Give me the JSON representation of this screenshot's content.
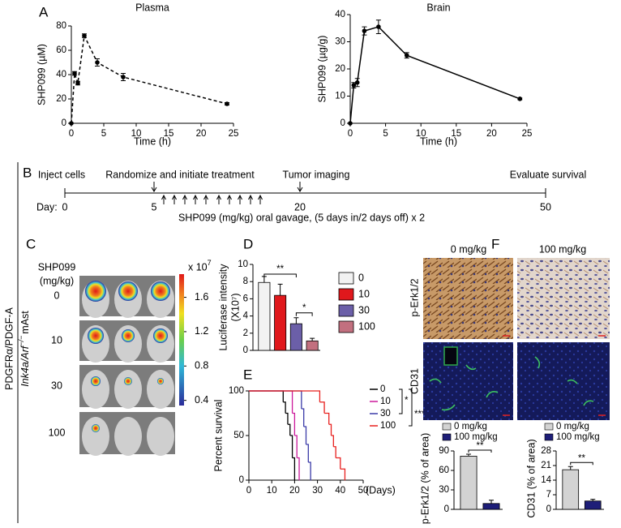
{
  "panel_labels": [
    "A",
    "B",
    "C",
    "D",
    "E",
    "F"
  ],
  "chart_data": [
    {
      "type": "line",
      "title": "Plasma",
      "xlabel": "Time (h)",
      "ylabel": "SHP099 (µM)",
      "x": [
        0,
        0.5,
        1,
        2,
        4,
        8,
        24
      ],
      "series": [
        {
          "color": "#000000",
          "dashed": true,
          "values": [
            0,
            41,
            33,
            72,
            50,
            38,
            16
          ],
          "errors": [
            0,
            1.5,
            1.5,
            1.5,
            3,
            3,
            1
          ]
        }
      ],
      "xlim": [
        0,
        25
      ],
      "xticks": [
        0,
        5,
        10,
        15,
        20,
        25
      ],
      "ylim": [
        0,
        80
      ],
      "yticks": [
        0,
        20,
        40,
        60,
        80
      ]
    },
    {
      "type": "line",
      "title": "Brain",
      "xlabel": "Time (h)",
      "ylabel": "SHP099 (µg/g)",
      "x": [
        0,
        0.5,
        1,
        2,
        4,
        8,
        24
      ],
      "series": [
        {
          "color": "#000000",
          "dashed": false,
          "values": [
            0,
            14,
            15,
            34,
            35.5,
            25,
            9
          ],
          "errors": [
            0,
            1,
            1.5,
            1.5,
            2.5,
            1,
            0.3
          ]
        }
      ],
      "xlim": [
        0,
        25
      ],
      "xticks": [
        0,
        5,
        10,
        15,
        20,
        25
      ],
      "ylim": [
        0,
        40
      ],
      "yticks": [
        0,
        10,
        20,
        30,
        40
      ]
    },
    {
      "type": "bar",
      "ylabel": "Luciferase intensity",
      "ylabel_unit": "(X10⁷)",
      "categories": [
        "0",
        "10",
        "30",
        "100"
      ],
      "values": [
        7.9,
        6.4,
        3.1,
        1.1
      ],
      "errors": [
        0.7,
        1.3,
        0.7,
        0.3
      ],
      "colors": [
        "#f2f2f2",
        "#e0181c",
        "#6b5fa8",
        "#c2707f"
      ],
      "ylim": [
        0,
        10
      ],
      "yticks": [
        0,
        2,
        4,
        6,
        8,
        10
      ],
      "annotations": [
        "**",
        "*"
      ]
    },
    {
      "type": "step",
      "ylabel": "Percent survival",
      "xlabel": "(Days)",
      "series": [
        {
          "name": "0",
          "color": "#000000",
          "x": [
            0,
            15,
            16,
            17,
            18,
            19,
            20
          ],
          "values": [
            100,
            87.5,
            75,
            62.5,
            50,
            25,
            0
          ]
        },
        {
          "name": "10",
          "color": "#cc1a9c",
          "x": [
            0,
            19,
            20,
            21,
            22
          ],
          "values": [
            100,
            75,
            50,
            25,
            0
          ]
        },
        {
          "name": "30",
          "color": "#3a3aa8",
          "x": [
            0,
            23,
            24,
            25,
            26,
            27
          ],
          "values": [
            100,
            80,
            60,
            40,
            20,
            0
          ]
        },
        {
          "name": "100",
          "color": "#e8201e",
          "x": [
            0,
            31,
            33,
            35,
            36,
            37,
            38,
            40,
            42
          ],
          "values": [
            100,
            87.5,
            75,
            62.5,
            50,
            37.5,
            25,
            12.5,
            0
          ]
        }
      ],
      "xlim": [
        0,
        50
      ],
      "xticks": [
        0,
        10,
        20,
        30,
        40,
        50
      ],
      "ylim": [
        0,
        100
      ],
      "yticks": [
        0,
        50,
        100
      ],
      "annotations": [
        "*",
        "***"
      ]
    },
    {
      "type": "bar",
      "ylabel": "p-Erk1/2 (% of area)",
      "categories": [
        "0 mg/kg",
        "100 mg/kg"
      ],
      "values": [
        82,
        9
      ],
      "errors": [
        3,
        5
      ],
      "colors": [
        "#d3d3d3",
        "#1e1e78"
      ],
      "ylim": [
        0,
        90
      ],
      "yticks": [
        0,
        30,
        60,
        90
      ],
      "annotations": [
        "**"
      ]
    },
    {
      "type": "bar",
      "ylabel": "CD31 (% of area)",
      "categories": [
        "0 mg/kg",
        "100 mg/kg"
      ],
      "values": [
        19,
        4
      ],
      "errors": [
        1.5,
        0.8
      ],
      "colors": [
        "#d3d3d3",
        "#1e1e78"
      ],
      "ylim": [
        0,
        28
      ],
      "yticks": [
        0,
        7,
        14,
        21,
        28
      ],
      "annotations": [
        "**"
      ]
    }
  ],
  "timeline": {
    "events": [
      "Inject cells",
      "Randomize and initiate treatment",
      "Tumor imaging",
      "Evaluate survival"
    ],
    "day_label": "Day:",
    "days": [
      "0",
      "5",
      "20",
      "50"
    ],
    "note": "SHP099 (mg/kg) oral gavage, (5 days in/2 days off) x 2"
  },
  "imaging": {
    "title_lines": [
      "SHP099",
      "(mg/kg)"
    ],
    "doses": [
      "0",
      "10",
      "30",
      "100"
    ],
    "colorbar": {
      "label": "x 10",
      "exponent": "7",
      "ticks": [
        1.6,
        1.2,
        0.8,
        0.4
      ],
      "range": [
        0.34,
        1.87
      ]
    },
    "model": "PDGFRα/PDGF-A",
    "genotype": {
      "gene": "Ink4a/Arf",
      "superscript": "−/−",
      "cell": "mAst"
    }
  },
  "histology": {
    "columns": [
      "0 mg/kg",
      "100 mg/kg"
    ],
    "rows": [
      "p-Erk1/2",
      "CD31"
    ]
  }
}
